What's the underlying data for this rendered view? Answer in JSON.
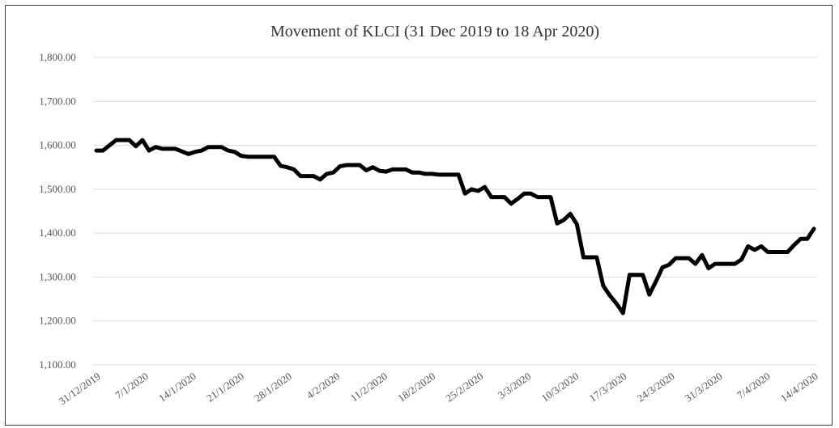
{
  "chart_data": {
    "type": "line",
    "title": "Movement of KLCI (31 Dec 2019 to 18 Apr 2020)",
    "xlabel": "",
    "ylabel": "",
    "ylim": [
      1100,
      1800
    ],
    "y_ticks": [
      "1,100.00",
      "1,200.00",
      "1,300.00",
      "1,400.00",
      "1,500.00",
      "1,600.00",
      "1,700.00",
      "1,800.00"
    ],
    "x_ticks": [
      "31/12/2019",
      "7/1/2020",
      "14/1/2020",
      "21/1/2020",
      "28/1/2020",
      "4/2/2020",
      "11/2/2020",
      "18/2/2020",
      "25/2/2020",
      "3/3/2020",
      "10/3/2020",
      "17/3/2020",
      "24/3/2020",
      "31/3/2020",
      "7/4/2020",
      "14/4/2020"
    ],
    "grid": true,
    "legend": "none",
    "line_color": "#000000",
    "series": [
      {
        "values": [
          1588,
          1588,
          1600,
          1612,
          1612,
          1612,
          1598,
          1612,
          1588,
          1596,
          1592,
          1592,
          1592,
          1586,
          1580,
          1585,
          1588,
          1596,
          1596,
          1596,
          1588,
          1585,
          1576,
          1574,
          1574,
          1574,
          1574,
          1574,
          1553,
          1550,
          1545,
          1530,
          1530,
          1530,
          1522,
          1535,
          1538,
          1552,
          1555,
          1555,
          1555,
          1543,
          1550,
          1542,
          1540,
          1545,
          1545,
          1545,
          1538,
          1538,
          1535,
          1535,
          1533,
          1533,
          1533,
          1533,
          1490,
          1500,
          1496,
          1505,
          1482,
          1482,
          1482,
          1467,
          1478,
          1490,
          1490,
          1482,
          1482,
          1482,
          1422,
          1430,
          1444,
          1420,
          1345,
          1345,
          1345,
          1280,
          1258,
          1240,
          1218,
          1305,
          1305,
          1305,
          1260,
          1290,
          1322,
          1328,
          1343,
          1343,
          1343,
          1330,
          1350,
          1320,
          1330,
          1330,
          1330,
          1330,
          1340,
          1370,
          1362,
          1370,
          1357,
          1357,
          1357,
          1357,
          1373,
          1387,
          1387,
          1410
        ]
      }
    ]
  }
}
